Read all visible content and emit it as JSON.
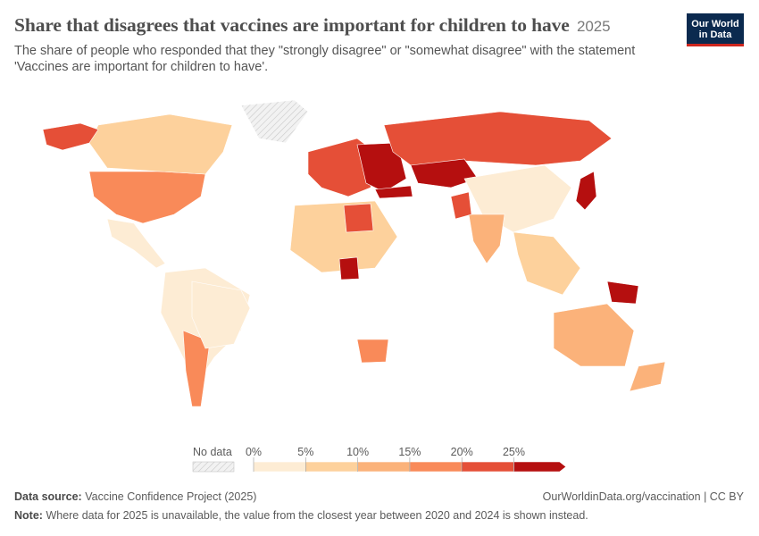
{
  "header": {
    "title": "Share that disagrees that vaccines are important for children to have",
    "year": "2025",
    "subtitle": "The share of people who responded that they \"strongly disagree\" or \"somewhat disagree\" with the statement 'Vaccines are important for children to have'."
  },
  "logo": {
    "line1": "Our World",
    "line2": "in Data"
  },
  "legend": {
    "no_data_label": "No data",
    "ticks": [
      "0%",
      "5%",
      "10%",
      "15%",
      "20%",
      "25%"
    ],
    "colors": [
      "#fdecd4",
      "#fdd19c",
      "#fbb27a",
      "#f98a59",
      "#e54f37",
      "#b50f0f"
    ]
  },
  "colors": {
    "no_data": "#e8e8e8",
    "ocean": "#ffffff"
  },
  "map_data": [
    {
      "region": "North America",
      "bucket": 3
    },
    {
      "region": "Canada",
      "bucket": 1
    },
    {
      "region": "Alaska",
      "bucket": 4
    },
    {
      "region": "Mexico & Central America",
      "bucket": 0
    },
    {
      "region": "South America",
      "bucket": 0
    },
    {
      "region": "Argentina",
      "bucket": 3
    },
    {
      "region": "Brazil",
      "bucket": 0
    },
    {
      "region": "Europe",
      "bucket": 4
    },
    {
      "region": "Eastern Europe",
      "bucket": 5
    },
    {
      "region": "Russia",
      "bucket": 4
    },
    {
      "region": "Kazakhstan",
      "bucket": 5
    },
    {
      "region": "Turkey",
      "bucket": 5
    },
    {
      "region": "China",
      "bucket": 0
    },
    {
      "region": "India",
      "bucket": 2
    },
    {
      "region": "Pakistan",
      "bucket": 4
    },
    {
      "region": "Japan",
      "bucket": 5
    },
    {
      "region": "Southeast Asia",
      "bucket": 1
    },
    {
      "region": "Papua New Guinea",
      "bucket": 5
    },
    {
      "region": "Australia",
      "bucket": 2
    },
    {
      "region": "New Zealand",
      "bucket": 2
    },
    {
      "region": "North Africa",
      "bucket": 1
    },
    {
      "region": "Libya",
      "bucket": 4
    },
    {
      "region": "Cameroon",
      "bucket": 5
    },
    {
      "region": "South Africa",
      "bucket": 3
    },
    {
      "region": "Greenland",
      "bucket": -1
    }
  ],
  "footer": {
    "source_label": "Data source:",
    "source_text": "Vaccine Confidence Project (2025)",
    "url": "OurWorldinData.org/vaccination | CC BY",
    "note_label": "Note:",
    "note_text": "Where data for 2025 is unavailable, the value from the closest year between 2020 and 2024 is shown instead."
  }
}
